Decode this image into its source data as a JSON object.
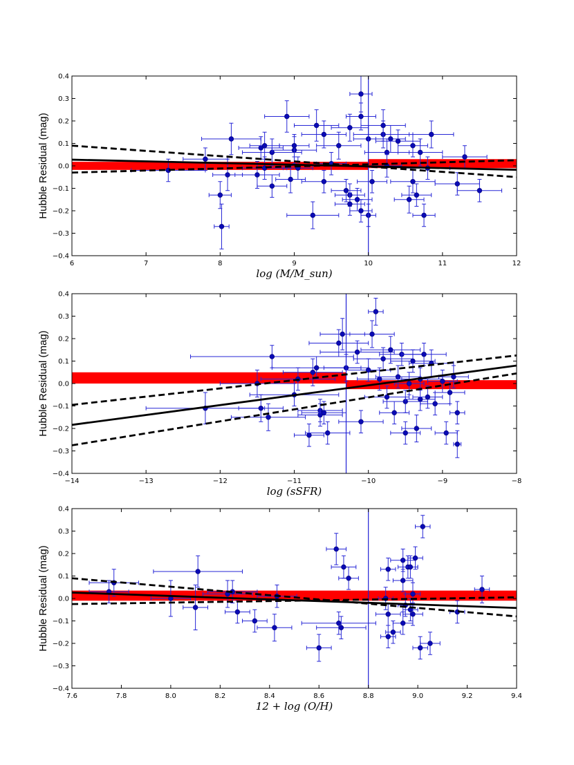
{
  "chart_data": [
    {
      "type": "scatter",
      "ylabel": "Hubble Residual (mag)",
      "xlabel": "log (M/M_sun)",
      "xlim": [
        6,
        12
      ],
      "ylim": [
        -0.4,
        0.4
      ],
      "x_ticks": [
        "6",
        "7",
        "8",
        "9",
        "10",
        "11",
        "12"
      ],
      "y_ticks": [
        "−0.4",
        "−0.3",
        "−0.2",
        "−0.1",
        "0.0",
        "0.1",
        "0.2",
        "0.3",
        "0.4"
      ],
      "split_value": 10.0,
      "bands": [
        {
          "x_from": 6,
          "x_to": 10,
          "y_low": -0.018,
          "y_high": 0.018
        },
        {
          "x_from": 10,
          "x_to": 12,
          "y_low": -0.01,
          "y_high": 0.03
        }
      ],
      "fit": {
        "slope": -0.0075,
        "intercept": 0.0725
      },
      "ci_upper": {
        "x": [
          6,
          12
        ],
        "y": [
          0.09,
          -0.05
        ]
      },
      "ci_lower": {
        "x": [
          6,
          12
        ],
        "y": [
          -0.03,
          0.025
        ]
      },
      "points": [
        {
          "x": 7.3,
          "y": -0.02,
          "xerr": 0.5,
          "yerr": 0.05
        },
        {
          "x": 7.8,
          "y": 0.03,
          "xerr": 0.3,
          "yerr": 0.05
        },
        {
          "x": 8.0,
          "y": -0.13,
          "xerr": 0.15,
          "yerr": 0.06
        },
        {
          "x": 8.02,
          "y": -0.27,
          "xerr": 0.1,
          "yerr": 0.1
        },
        {
          "x": 8.1,
          "y": -0.04,
          "xerr": 0.2,
          "yerr": 0.07
        },
        {
          "x": 8.15,
          "y": 0.12,
          "xerr": 0.4,
          "yerr": 0.07
        },
        {
          "x": 8.5,
          "y": -0.04,
          "xerr": 0.3,
          "yerr": 0.06
        },
        {
          "x": 8.55,
          "y": 0.08,
          "xerr": 0.3,
          "yerr": 0.05
        },
        {
          "x": 8.6,
          "y": 0.09,
          "xerr": 0.2,
          "yerr": 0.06
        },
        {
          "x": 8.6,
          "y": -0.01,
          "xerr": 0.3,
          "yerr": 0.05
        },
        {
          "x": 8.7,
          "y": 0.06,
          "xerr": 0.4,
          "yerr": 0.06
        },
        {
          "x": 8.7,
          "y": -0.09,
          "xerr": 0.2,
          "yerr": 0.05
        },
        {
          "x": 8.9,
          "y": 0.22,
          "xerr": 0.3,
          "yerr": 0.07
        },
        {
          "x": 8.95,
          "y": -0.06,
          "xerr": 0.2,
          "yerr": 0.06
        },
        {
          "x": 9.0,
          "y": 0.07,
          "xerr": 0.3,
          "yerr": 0.06
        },
        {
          "x": 9.0,
          "y": 0.09,
          "xerr": 0.2,
          "yerr": 0.05
        },
        {
          "x": 9.05,
          "y": -0.01,
          "xerr": 0.2,
          "yerr": 0.05
        },
        {
          "x": 9.25,
          "y": -0.22,
          "xerr": 0.35,
          "yerr": 0.06
        },
        {
          "x": 9.3,
          "y": 0.18,
          "xerr": 0.3,
          "yerr": 0.07
        },
        {
          "x": 9.4,
          "y": 0.14,
          "xerr": 0.3,
          "yerr": 0.06
        },
        {
          "x": 9.4,
          "y": -0.07,
          "xerr": 0.3,
          "yerr": 0.05
        },
        {
          "x": 9.5,
          "y": 0.01,
          "xerr": 0.2,
          "yerr": 0.05
        },
        {
          "x": 9.6,
          "y": 0.09,
          "xerr": 0.3,
          "yerr": 0.06
        },
        {
          "x": 9.7,
          "y": -0.11,
          "xerr": 0.2,
          "yerr": 0.05
        },
        {
          "x": 9.75,
          "y": 0.17,
          "xerr": 0.25,
          "yerr": 0.06
        },
        {
          "x": 9.75,
          "y": -0.13,
          "xerr": 0.2,
          "yerr": 0.05
        },
        {
          "x": 9.75,
          "y": -0.17,
          "xerr": 0.2,
          "yerr": 0.05
        },
        {
          "x": 9.85,
          "y": -0.15,
          "xerr": 0.2,
          "yerr": 0.05
        },
        {
          "x": 9.9,
          "y": 0.32,
          "xerr": 0.15,
          "yerr": 0.08
        },
        {
          "x": 9.9,
          "y": 0.22,
          "xerr": 0.2,
          "yerr": 0.06
        },
        {
          "x": 9.9,
          "y": -0.2,
          "xerr": 0.15,
          "yerr": 0.05
        },
        {
          "x": 10.0,
          "y": -0.22,
          "xerr": 0.1,
          "yerr": 0.05
        },
        {
          "x": 10.0,
          "y": 0.12,
          "xerr": 0.2,
          "yerr": 0.06
        },
        {
          "x": 10.05,
          "y": -0.07,
          "xerr": 0.2,
          "yerr": 0.05
        },
        {
          "x": 10.2,
          "y": 0.14,
          "xerr": 0.4,
          "yerr": 0.06
        },
        {
          "x": 10.2,
          "y": 0.18,
          "xerr": 0.3,
          "yerr": 0.07
        },
        {
          "x": 10.25,
          "y": 0.06,
          "xerr": 0.3,
          "yerr": 0.06
        },
        {
          "x": 10.25,
          "y": 0.0,
          "xerr": 0.2,
          "yerr": 0.05
        },
        {
          "x": 10.3,
          "y": 0.12,
          "xerr": 0.2,
          "yerr": 0.06
        },
        {
          "x": 10.4,
          "y": 0.11,
          "xerr": 0.3,
          "yerr": 0.05
        },
        {
          "x": 10.55,
          "y": -0.15,
          "xerr": 0.2,
          "yerr": 0.06
        },
        {
          "x": 10.6,
          "y": 0.09,
          "xerr": 0.2,
          "yerr": 0.05
        },
        {
          "x": 10.6,
          "y": -0.07,
          "xerr": 0.3,
          "yerr": 0.05
        },
        {
          "x": 10.65,
          "y": -0.13,
          "xerr": 0.2,
          "yerr": 0.05
        },
        {
          "x": 10.7,
          "y": 0.06,
          "xerr": 0.3,
          "yerr": 0.06
        },
        {
          "x": 10.75,
          "y": -0.22,
          "xerr": 0.15,
          "yerr": 0.05
        },
        {
          "x": 10.8,
          "y": -0.01,
          "xerr": 0.3,
          "yerr": 0.05
        },
        {
          "x": 10.85,
          "y": 0.14,
          "xerr": 0.3,
          "yerr": 0.06
        },
        {
          "x": 11.2,
          "y": -0.08,
          "xerr": 0.3,
          "yerr": 0.05
        },
        {
          "x": 11.3,
          "y": 0.04,
          "xerr": 0.3,
          "yerr": 0.05
        },
        {
          "x": 11.5,
          "y": -0.11,
          "xerr": 0.3,
          "yerr": 0.05
        }
      ]
    },
    {
      "type": "scatter",
      "ylabel": "Hubble Residual (mag)",
      "xlabel": "log (sSFR)",
      "xlim": [
        -14,
        -8
      ],
      "ylim": [
        -0.4,
        0.4
      ],
      "x_ticks": [
        "−14",
        "−13",
        "−12",
        "−11",
        "−10",
        "−9",
        "−8"
      ],
      "y_ticks": [
        "−0.4",
        "−0.3",
        "−0.2",
        "−0.1",
        "0.0",
        "0.1",
        "0.2",
        "0.3",
        "0.4"
      ],
      "split_value": -10.3,
      "bands": [
        {
          "x_from": -14,
          "x_to": -10.3,
          "y_low": 0.0,
          "y_high": 0.05
        },
        {
          "x_from": -10.3,
          "x_to": -8,
          "y_low": -0.025,
          "y_high": 0.015
        }
      ],
      "fit": {
        "slope": 0.044,
        "intercept": 0.432
      },
      "ci_upper": {
        "x": [
          -14,
          -8
        ],
        "y": [
          -0.095,
          0.125
        ]
      },
      "ci_lower": {
        "x": [
          -14,
          -8
        ],
        "y": [
          -0.275,
          0.045
        ]
      },
      "points": [
        {
          "x": -12.2,
          "y": -0.11,
          "xerr": 0.8,
          "yerr": 0.07
        },
        {
          "x": -11.5,
          "y": 0.0,
          "xerr": 0.5,
          "yerr": 0.06
        },
        {
          "x": -11.45,
          "y": -0.11,
          "xerr": 0.3,
          "yerr": 0.06
        },
        {
          "x": -11.35,
          "y": -0.15,
          "xerr": 0.5,
          "yerr": 0.06
        },
        {
          "x": -11.3,
          "y": 0.12,
          "xerr": 1.1,
          "yerr": 0.05
        },
        {
          "x": -11.0,
          "y": -0.05,
          "xerr": 0.6,
          "yerr": 0.05
        },
        {
          "x": -10.95,
          "y": 0.02,
          "xerr": 0.5,
          "yerr": 0.05
        },
        {
          "x": -10.8,
          "y": -0.23,
          "xerr": 0.2,
          "yerr": 0.05
        },
        {
          "x": -10.75,
          "y": 0.05,
          "xerr": 0.4,
          "yerr": 0.06
        },
        {
          "x": -10.7,
          "y": 0.07,
          "xerr": 0.6,
          "yerr": 0.05
        },
        {
          "x": -10.65,
          "y": -0.12,
          "xerr": 0.3,
          "yerr": 0.05
        },
        {
          "x": -10.65,
          "y": -0.14,
          "xerr": 0.3,
          "yerr": 0.05
        },
        {
          "x": -10.6,
          "y": -0.13,
          "xerr": 0.3,
          "yerr": 0.05
        },
        {
          "x": -10.55,
          "y": -0.22,
          "xerr": 0.3,
          "yerr": 0.05
        },
        {
          "x": -10.4,
          "y": 0.18,
          "xerr": 0.4,
          "yerr": 0.06
        },
        {
          "x": -10.35,
          "y": 0.22,
          "xerr": 0.3,
          "yerr": 0.07
        },
        {
          "x": -10.3,
          "y": 0.07,
          "xerr": 0.3,
          "yerr": 0.06
        },
        {
          "x": -10.15,
          "y": 0.14,
          "xerr": 0.5,
          "yerr": 0.05
        },
        {
          "x": -10.1,
          "y": -0.17,
          "xerr": 0.3,
          "yerr": 0.05
        },
        {
          "x": -10.0,
          "y": 0.06,
          "xerr": 0.3,
          "yerr": 0.05
        },
        {
          "x": -9.95,
          "y": 0.22,
          "xerr": 0.3,
          "yerr": 0.06
        },
        {
          "x": -9.9,
          "y": 0.32,
          "xerr": 0.1,
          "yerr": 0.06
        },
        {
          "x": -9.85,
          "y": 0.02,
          "xerr": 0.3,
          "yerr": 0.05
        },
        {
          "x": -9.8,
          "y": 0.11,
          "xerr": 0.4,
          "yerr": 0.05
        },
        {
          "x": -9.75,
          "y": -0.06,
          "xerr": 0.3,
          "yerr": 0.05
        },
        {
          "x": -9.7,
          "y": 0.15,
          "xerr": 0.4,
          "yerr": 0.06
        },
        {
          "x": -9.65,
          "y": -0.13,
          "xerr": 0.2,
          "yerr": 0.05
        },
        {
          "x": -9.6,
          "y": 0.03,
          "xerr": 0.3,
          "yerr": 0.05
        },
        {
          "x": -9.55,
          "y": 0.13,
          "xerr": 0.3,
          "yerr": 0.05
        },
        {
          "x": -9.5,
          "y": -0.08,
          "xerr": 0.3,
          "yerr": 0.05
        },
        {
          "x": -9.5,
          "y": -0.22,
          "xerr": 0.2,
          "yerr": 0.05
        },
        {
          "x": -9.45,
          "y": 0.0,
          "xerr": 0.2,
          "yerr": 0.05
        },
        {
          "x": -9.4,
          "y": 0.1,
          "xerr": 0.3,
          "yerr": 0.05
        },
        {
          "x": -9.35,
          "y": -0.2,
          "xerr": 0.2,
          "yerr": 0.06
        },
        {
          "x": -9.3,
          "y": 0.02,
          "xerr": 0.3,
          "yerr": 0.05
        },
        {
          "x": -9.3,
          "y": -0.07,
          "xerr": 0.2,
          "yerr": 0.05
        },
        {
          "x": -9.25,
          "y": 0.13,
          "xerr": 0.3,
          "yerr": 0.05
        },
        {
          "x": -9.2,
          "y": -0.06,
          "xerr": 0.2,
          "yerr": 0.05
        },
        {
          "x": -9.15,
          "y": 0.09,
          "xerr": 0.3,
          "yerr": 0.06
        },
        {
          "x": -9.1,
          "y": -0.09,
          "xerr": 0.2,
          "yerr": 0.05
        },
        {
          "x": -9.0,
          "y": 0.01,
          "xerr": 0.2,
          "yerr": 0.05
        },
        {
          "x": -8.95,
          "y": -0.22,
          "xerr": 0.15,
          "yerr": 0.05
        },
        {
          "x": -8.9,
          "y": -0.04,
          "xerr": 0.2,
          "yerr": 0.05
        },
        {
          "x": -8.85,
          "y": 0.03,
          "xerr": 0.2,
          "yerr": 0.05
        },
        {
          "x": -8.8,
          "y": -0.13,
          "xerr": 0.1,
          "yerr": 0.05
        },
        {
          "x": -8.8,
          "y": -0.27,
          "xerr": 0.05,
          "yerr": 0.06
        }
      ]
    },
    {
      "type": "scatter",
      "ylabel": "Hubble Residual (mag)",
      "xlabel": "12 + log (O/H)",
      "xlim": [
        7.6,
        9.4
      ],
      "ylim": [
        -0.4,
        0.4
      ],
      "x_ticks": [
        "7.6",
        "7.8",
        "8.0",
        "8.2",
        "8.4",
        "8.6",
        "8.8",
        "9.0",
        "9.2",
        "9.4"
      ],
      "y_ticks": [
        "−0.4",
        "−0.3",
        "−0.2",
        "−0.1",
        "0.0",
        "0.1",
        "0.2",
        "0.3",
        "0.4"
      ],
      "split_value": 8.8,
      "bands": [
        {
          "x_from": 7.6,
          "x_to": 8.8,
          "y_low": -0.01,
          "y_high": 0.035
        },
        {
          "x_from": 8.8,
          "x_to": 9.4,
          "y_low": -0.01,
          "y_high": 0.035
        }
      ],
      "fit": {
        "slope": -0.038,
        "intercept": 0.315
      },
      "ci_upper": {
        "x": [
          7.6,
          9.4
        ],
        "y": [
          0.09,
          -0.08
        ]
      },
      "ci_lower": {
        "x": [
          7.6,
          9.4
        ],
        "y": [
          -0.025,
          0.005
        ]
      },
      "points": [
        {
          "x": 7.75,
          "y": 0.03,
          "xerr": 0.08,
          "yerr": 0.05
        },
        {
          "x": 7.77,
          "y": 0.07,
          "xerr": 0.1,
          "yerr": 0.06
        },
        {
          "x": 8.0,
          "y": 0.0,
          "xerr": 0.08,
          "yerr": 0.08
        },
        {
          "x": 8.1,
          "y": -0.04,
          "xerr": 0.05,
          "yerr": 0.1
        },
        {
          "x": 8.11,
          "y": 0.12,
          "xerr": 0.18,
          "yerr": 0.07
        },
        {
          "x": 8.23,
          "y": 0.02,
          "xerr": 0.1,
          "yerr": 0.06
        },
        {
          "x": 8.25,
          "y": 0.03,
          "xerr": 0.1,
          "yerr": 0.05
        },
        {
          "x": 8.27,
          "y": -0.06,
          "xerr": 0.05,
          "yerr": 0.05
        },
        {
          "x": 8.34,
          "y": -0.1,
          "xerr": 0.05,
          "yerr": 0.05
        },
        {
          "x": 8.42,
          "y": -0.13,
          "xerr": 0.07,
          "yerr": 0.06
        },
        {
          "x": 8.43,
          "y": 0.01,
          "xerr": 0.08,
          "yerr": 0.05
        },
        {
          "x": 8.6,
          "y": -0.22,
          "xerr": 0.05,
          "yerr": 0.06
        },
        {
          "x": 8.67,
          "y": 0.22,
          "xerr": 0.04,
          "yerr": 0.07
        },
        {
          "x": 8.68,
          "y": -0.11,
          "xerr": 0.15,
          "yerr": 0.05
        },
        {
          "x": 8.69,
          "y": -0.13,
          "xerr": 0.1,
          "yerr": 0.05
        },
        {
          "x": 8.7,
          "y": 0.14,
          "xerr": 0.05,
          "yerr": 0.05
        },
        {
          "x": 8.72,
          "y": 0.09,
          "xerr": 0.04,
          "yerr": 0.05
        },
        {
          "x": 8.87,
          "y": 0.0,
          "xerr": 0.03,
          "yerr": 0.05
        },
        {
          "x": 8.88,
          "y": -0.17,
          "xerr": 0.03,
          "yerr": 0.05
        },
        {
          "x": 8.88,
          "y": -0.07,
          "xerr": 0.05,
          "yerr": 0.05
        },
        {
          "x": 8.88,
          "y": 0.13,
          "xerr": 0.03,
          "yerr": 0.05
        },
        {
          "x": 8.9,
          "y": -0.15,
          "xerr": 0.03,
          "yerr": 0.05
        },
        {
          "x": 8.94,
          "y": -0.11,
          "xerr": 0.04,
          "yerr": 0.05
        },
        {
          "x": 8.94,
          "y": 0.17,
          "xerr": 0.05,
          "yerr": 0.05
        },
        {
          "x": 8.94,
          "y": 0.08,
          "xerr": 0.04,
          "yerr": 0.05
        },
        {
          "x": 8.95,
          "y": -0.03,
          "xerr": 0.03,
          "yerr": 0.05
        },
        {
          "x": 8.96,
          "y": 0.14,
          "xerr": 0.04,
          "yerr": 0.05
        },
        {
          "x": 8.97,
          "y": -0.05,
          "xerr": 0.03,
          "yerr": 0.05
        },
        {
          "x": 8.97,
          "y": 0.14,
          "xerr": 0.03,
          "yerr": 0.05
        },
        {
          "x": 8.98,
          "y": 0.02,
          "xerr": 0.03,
          "yerr": 0.05
        },
        {
          "x": 8.98,
          "y": -0.07,
          "xerr": 0.04,
          "yerr": 0.05
        },
        {
          "x": 8.99,
          "y": 0.18,
          "xerr": 0.03,
          "yerr": 0.05
        },
        {
          "x": 9.01,
          "y": -0.22,
          "xerr": 0.03,
          "yerr": 0.05
        },
        {
          "x": 9.02,
          "y": 0.32,
          "xerr": 0.03,
          "yerr": 0.05
        },
        {
          "x": 9.05,
          "y": -0.2,
          "xerr": 0.04,
          "yerr": 0.05
        },
        {
          "x": 9.16,
          "y": -0.06,
          "xerr": 0.03,
          "yerr": 0.05
        },
        {
          "x": 9.26,
          "y": 0.04,
          "xerr": 0.03,
          "yerr": 0.06
        }
      ]
    }
  ],
  "colors": {
    "points": "#0a0ab4",
    "errorbars": "#2626d6",
    "split_line": "#1f1fd6",
    "band": "#ff0000",
    "fit": "#000000",
    "axes": "#000000"
  }
}
